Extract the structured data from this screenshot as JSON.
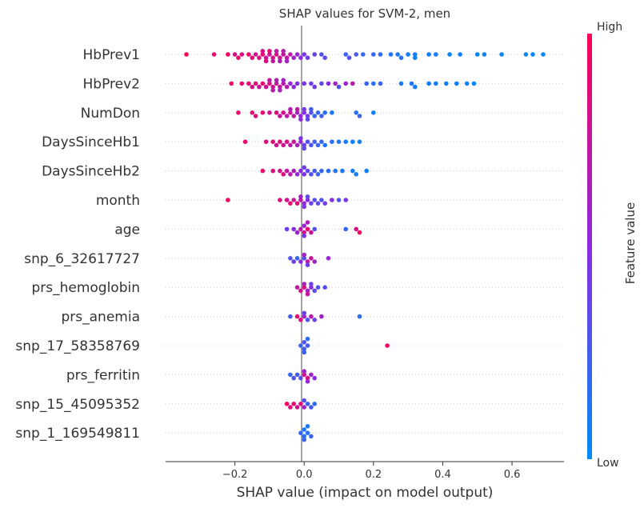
{
  "chart_data": {
    "type": "scatter",
    "title": "SHAP values for SVM-2, men",
    "xlabel": "SHAP value (impact on model output)",
    "xlim": [
      -0.4,
      0.75
    ],
    "xticks": [
      -0.2,
      0.0,
      0.2,
      0.4,
      0.6
    ],
    "xtick_labels": [
      "−0.2",
      "0.0",
      "0.2",
      "0.4",
      "0.6"
    ],
    "grid": false,
    "colorbar": {
      "label": "Feature value",
      "high_label": "High",
      "low_label": "Low",
      "high_color": "#ff0052",
      "mid_color": "#8a2be2",
      "low_color": "#008bfb"
    },
    "features": [
      {
        "name": "HbPrev1",
        "points": [
          [
            -0.34,
            0.98
          ],
          [
            -0.26,
            0.9
          ],
          [
            -0.22,
            0.95
          ],
          [
            -0.2,
            0.85
          ],
          [
            -0.19,
            0.9
          ],
          [
            -0.18,
            0.85
          ],
          [
            -0.16,
            0.92
          ],
          [
            -0.15,
            0.88
          ],
          [
            -0.14,
            0.8
          ],
          [
            -0.13,
            0.85
          ],
          [
            -0.12,
            0.9
          ],
          [
            -0.12,
            0.82
          ],
          [
            -0.11,
            0.78
          ],
          [
            -0.11,
            0.86
          ],
          [
            -0.1,
            0.75
          ],
          [
            -0.1,
            0.88
          ],
          [
            -0.09,
            0.8
          ],
          [
            -0.09,
            0.72
          ],
          [
            -0.08,
            0.85
          ],
          [
            -0.08,
            0.7
          ],
          [
            -0.07,
            0.78
          ],
          [
            -0.07,
            0.66
          ],
          [
            -0.06,
            0.74
          ],
          [
            -0.06,
            0.68
          ],
          [
            -0.05,
            0.72
          ],
          [
            -0.05,
            0.62
          ],
          [
            -0.04,
            0.7
          ],
          [
            -0.03,
            0.6
          ],
          [
            -0.02,
            0.58
          ],
          [
            -0.01,
            0.5
          ],
          [
            0.0,
            0.45
          ],
          [
            0.01,
            0.4
          ],
          [
            0.03,
            0.38
          ],
          [
            0.05,
            0.3
          ],
          [
            0.06,
            0.32
          ],
          [
            0.12,
            0.22
          ],
          [
            0.13,
            0.3
          ],
          [
            0.15,
            0.25
          ],
          [
            0.17,
            0.18
          ],
          [
            0.2,
            0.2
          ],
          [
            0.22,
            0.15
          ],
          [
            0.25,
            0.12
          ],
          [
            0.27,
            0.1
          ],
          [
            0.28,
            0.14
          ],
          [
            0.3,
            0.08
          ],
          [
            0.32,
            0.1
          ],
          [
            0.32,
            0.05
          ],
          [
            0.36,
            0.06
          ],
          [
            0.38,
            0.08
          ],
          [
            0.42,
            0.04
          ],
          [
            0.45,
            0.05
          ],
          [
            0.5,
            0.03
          ],
          [
            0.52,
            0.04
          ],
          [
            0.57,
            0.02
          ],
          [
            0.64,
            0.02
          ],
          [
            0.66,
            0.03
          ],
          [
            0.69,
            0.01
          ]
        ]
      },
      {
        "name": "HbPrev2",
        "points": [
          [
            -0.21,
            0.95
          ],
          [
            -0.18,
            0.88
          ],
          [
            -0.16,
            0.9
          ],
          [
            -0.15,
            0.82
          ],
          [
            -0.14,
            0.86
          ],
          [
            -0.13,
            0.8
          ],
          [
            -0.12,
            0.9
          ],
          [
            -0.11,
            0.78
          ],
          [
            -0.1,
            0.84
          ],
          [
            -0.1,
            0.72
          ],
          [
            -0.09,
            0.8
          ],
          [
            -0.09,
            0.7
          ],
          [
            -0.08,
            0.76
          ],
          [
            -0.08,
            0.66
          ],
          [
            -0.07,
            0.74
          ],
          [
            -0.07,
            0.62
          ],
          [
            -0.06,
            0.7
          ],
          [
            -0.06,
            0.6
          ],
          [
            -0.05,
            0.66
          ],
          [
            -0.04,
            0.55
          ],
          [
            -0.03,
            0.52
          ],
          [
            -0.02,
            0.48
          ],
          [
            0.0,
            0.45
          ],
          [
            0.02,
            0.4
          ],
          [
            0.03,
            0.42
          ],
          [
            0.05,
            0.35
          ],
          [
            0.07,
            0.5
          ],
          [
            0.09,
            0.62
          ],
          [
            0.1,
            0.3
          ],
          [
            0.12,
            0.58
          ],
          [
            0.14,
            0.7
          ],
          [
            0.18,
            0.2
          ],
          [
            0.2,
            0.15
          ],
          [
            0.22,
            0.2
          ],
          [
            0.28,
            0.1
          ],
          [
            0.31,
            0.12
          ],
          [
            0.32,
            0.08
          ],
          [
            0.36,
            0.06
          ],
          [
            0.38,
            0.08
          ],
          [
            0.41,
            0.05
          ],
          [
            0.44,
            0.06
          ],
          [
            0.47,
            0.04
          ],
          [
            0.49,
            0.03
          ]
        ]
      },
      {
        "name": "NumDon",
        "points": [
          [
            -0.19,
            0.92
          ],
          [
            -0.15,
            0.88
          ],
          [
            -0.14,
            0.85
          ],
          [
            -0.12,
            0.9
          ],
          [
            -0.1,
            0.8
          ],
          [
            -0.08,
            0.86
          ],
          [
            -0.07,
            0.75
          ],
          [
            -0.06,
            0.82
          ],
          [
            -0.05,
            0.7
          ],
          [
            -0.04,
            0.78
          ],
          [
            -0.04,
            0.68
          ],
          [
            -0.03,
            0.72
          ],
          [
            -0.02,
            0.6
          ],
          [
            -0.02,
            0.7
          ],
          [
            -0.01,
            0.55
          ],
          [
            -0.01,
            0.5
          ],
          [
            0.0,
            0.48
          ],
          [
            0.0,
            0.42
          ],
          [
            0.01,
            0.4
          ],
          [
            0.01,
            0.35
          ],
          [
            0.02,
            0.3
          ],
          [
            0.02,
            0.25
          ],
          [
            0.03,
            0.2
          ],
          [
            0.04,
            0.18
          ],
          [
            0.05,
            0.22
          ],
          [
            0.06,
            0.15
          ],
          [
            0.08,
            0.1
          ],
          [
            0.15,
            0.12
          ],
          [
            0.16,
            0.2
          ],
          [
            0.2,
            0.05
          ]
        ]
      },
      {
        "name": "DaysSinceHb1",
        "points": [
          [
            -0.17,
            0.9
          ],
          [
            -0.11,
            0.85
          ],
          [
            -0.09,
            0.88
          ],
          [
            -0.08,
            0.8
          ],
          [
            -0.07,
            0.85
          ],
          [
            -0.06,
            0.78
          ],
          [
            -0.05,
            0.82
          ],
          [
            -0.04,
            0.7
          ],
          [
            -0.03,
            0.75
          ],
          [
            -0.02,
            0.65
          ],
          [
            -0.01,
            0.55
          ],
          [
            -0.01,
            0.45
          ],
          [
            0.0,
            0.4
          ],
          [
            0.0,
            0.35
          ],
          [
            0.01,
            0.3
          ],
          [
            0.02,
            0.28
          ],
          [
            0.03,
            0.22
          ],
          [
            0.04,
            0.2
          ],
          [
            0.05,
            0.18
          ],
          [
            0.06,
            0.12
          ],
          [
            0.08,
            0.15
          ],
          [
            0.1,
            0.1
          ],
          [
            0.12,
            0.08
          ],
          [
            0.14,
            0.06
          ],
          [
            0.16,
            0.05
          ]
        ]
      },
      {
        "name": "DaysSinceHb2",
        "points": [
          [
            -0.12,
            0.9
          ],
          [
            -0.09,
            0.85
          ],
          [
            -0.07,
            0.8
          ],
          [
            -0.06,
            0.85
          ],
          [
            -0.05,
            0.75
          ],
          [
            -0.04,
            0.7
          ],
          [
            -0.03,
            0.65
          ],
          [
            -0.02,
            0.55
          ],
          [
            -0.01,
            0.5
          ],
          [
            0.0,
            0.45
          ],
          [
            0.0,
            0.4
          ],
          [
            0.01,
            0.35
          ],
          [
            0.02,
            0.3
          ],
          [
            0.03,
            0.25
          ],
          [
            0.04,
            0.22
          ],
          [
            0.05,
            0.2
          ],
          [
            0.07,
            0.15
          ],
          [
            0.09,
            0.12
          ],
          [
            0.11,
            0.1
          ],
          [
            0.14,
            0.08
          ],
          [
            0.15,
            0.06
          ],
          [
            0.18,
            0.05
          ]
        ]
      },
      {
        "name": "month",
        "points": [
          [
            -0.22,
            0.95
          ],
          [
            -0.07,
            0.85
          ],
          [
            -0.05,
            0.8
          ],
          [
            -0.04,
            0.9
          ],
          [
            -0.03,
            0.75
          ],
          [
            -0.02,
            0.88
          ],
          [
            -0.01,
            0.7
          ],
          [
            -0.01,
            0.6
          ],
          [
            0.0,
            0.55
          ],
          [
            0.0,
            0.45
          ],
          [
            0.01,
            0.5
          ],
          [
            0.01,
            0.35
          ],
          [
            0.02,
            0.4
          ],
          [
            0.03,
            0.3
          ],
          [
            0.04,
            0.35
          ],
          [
            0.05,
            0.3
          ],
          [
            0.06,
            0.4
          ],
          [
            0.08,
            0.5
          ],
          [
            0.1,
            0.3
          ],
          [
            0.12,
            0.45
          ]
        ]
      },
      {
        "name": "age",
        "points": [
          [
            -0.05,
            0.4
          ],
          [
            -0.03,
            0.5
          ],
          [
            -0.02,
            0.6
          ],
          [
            -0.01,
            0.7
          ],
          [
            0.0,
            0.8
          ],
          [
            0.0,
            0.55
          ],
          [
            0.0,
            0.45
          ],
          [
            0.01,
            0.9
          ],
          [
            0.01,
            0.65
          ],
          [
            0.02,
            0.75
          ],
          [
            0.03,
            0.3
          ],
          [
            0.12,
            0.2
          ],
          [
            0.15,
            0.85
          ],
          [
            0.16,
            0.95
          ]
        ]
      },
      {
        "name": "snp_6_32617727",
        "points": [
          [
            -0.04,
            0.3
          ],
          [
            -0.03,
            0.4
          ],
          [
            -0.02,
            0.2
          ],
          [
            -0.01,
            0.5
          ],
          [
            0.0,
            0.3
          ],
          [
            0.0,
            0.6
          ],
          [
            0.01,
            0.7
          ],
          [
            0.01,
            0.4
          ],
          [
            0.02,
            0.75
          ],
          [
            0.03,
            0.6
          ],
          [
            0.07,
            0.55
          ]
        ]
      },
      {
        "name": "prs_hemoglobin",
        "points": [
          [
            -0.02,
            0.7
          ],
          [
            -0.01,
            0.8
          ],
          [
            0.0,
            0.85
          ],
          [
            0.0,
            0.65
          ],
          [
            0.01,
            0.6
          ],
          [
            0.01,
            0.75
          ],
          [
            0.02,
            0.5
          ],
          [
            0.02,
            0.4
          ],
          [
            0.03,
            0.35
          ],
          [
            0.04,
            0.3
          ],
          [
            0.06,
            0.3
          ]
        ]
      },
      {
        "name": "prs_anemia",
        "points": [
          [
            -0.04,
            0.25
          ],
          [
            -0.02,
            0.9
          ],
          [
            -0.01,
            0.85
          ],
          [
            0.0,
            0.6
          ],
          [
            0.0,
            0.4
          ],
          [
            0.01,
            0.3
          ],
          [
            0.02,
            0.7
          ],
          [
            0.03,
            0.4
          ],
          [
            0.05,
            0.6
          ],
          [
            0.16,
            0.15
          ]
        ]
      },
      {
        "name": "snp_17_58358769",
        "points": [
          [
            -0.01,
            0.2
          ],
          [
            0.0,
            0.25
          ],
          [
            0.0,
            0.3
          ],
          [
            0.0,
            0.2
          ],
          [
            0.01,
            0.25
          ],
          [
            0.01,
            0.15
          ],
          [
            0.24,
            0.95
          ]
        ]
      },
      {
        "name": "prs_ferritin",
        "points": [
          [
            -0.04,
            0.2
          ],
          [
            -0.03,
            0.3
          ],
          [
            -0.02,
            0.25
          ],
          [
            -0.01,
            0.3
          ],
          [
            0.0,
            0.8
          ],
          [
            0.0,
            0.6
          ],
          [
            0.01,
            0.85
          ],
          [
            0.01,
            0.55
          ],
          [
            0.02,
            0.6
          ],
          [
            0.03,
            0.5
          ]
        ]
      },
      {
        "name": "snp_15_45095352",
        "points": [
          [
            -0.05,
            0.95
          ],
          [
            -0.04,
            0.85
          ],
          [
            -0.03,
            0.9
          ],
          [
            -0.02,
            0.8
          ],
          [
            -0.01,
            0.85
          ],
          [
            0.0,
            0.6
          ],
          [
            0.0,
            0.3
          ],
          [
            0.01,
            0.2
          ],
          [
            0.02,
            0.25
          ],
          [
            0.03,
            0.15
          ]
        ]
      },
      {
        "name": "snp_1_169549811",
        "points": [
          [
            -0.01,
            0.2
          ],
          [
            0.0,
            0.15
          ],
          [
            0.0,
            0.1
          ],
          [
            0.0,
            0.2
          ],
          [
            0.01,
            0.15
          ],
          [
            0.01,
            0.1
          ],
          [
            0.02,
            0.2
          ]
        ]
      }
    ]
  }
}
